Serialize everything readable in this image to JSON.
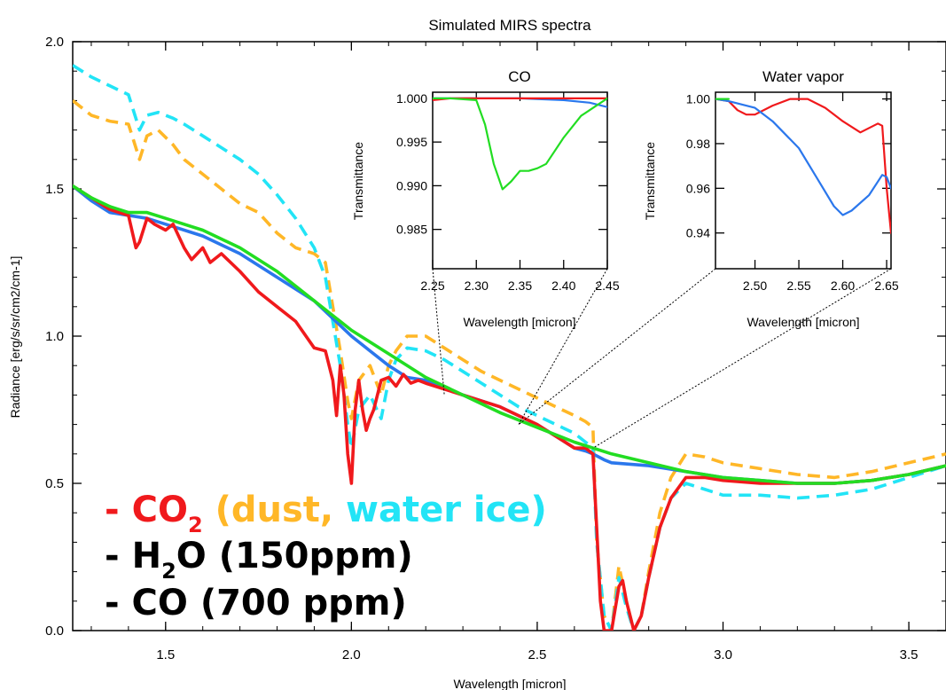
{
  "chart_data": [
    {
      "type": "line",
      "title": "Simulated MIRS spectra",
      "xlabel": "Wavelength [micron]",
      "ylabel": "Radiance [erg/s/sr/cm2/cm-1]",
      "xlim": [
        1.25,
        3.6
      ],
      "ylim": [
        0.0,
        2.0
      ],
      "xticks": [
        "1.5",
        "2.0",
        "2.5",
        "3.0",
        "3.5"
      ],
      "xtick_values": [
        1.5,
        2.0,
        2.5,
        3.0,
        3.5
      ],
      "yticks": [
        "0.0",
        "0.5",
        "1.0",
        "1.5",
        "2.0"
      ],
      "ytick_values": [
        0.0,
        0.5,
        1.0,
        1.5,
        2.0
      ],
      "series": [
        {
          "key": "dust",
          "color": "#ffb727",
          "dashed": true,
          "x": [
            1.25,
            1.3,
            1.35,
            1.4,
            1.43,
            1.45,
            1.48,
            1.52,
            1.55,
            1.6,
            1.65,
            1.7,
            1.75,
            1.8,
            1.85,
            1.9,
            1.93,
            1.95,
            1.97,
            1.99,
            2.0,
            2.02,
            2.05,
            2.08,
            2.1,
            2.12,
            2.15,
            2.2,
            2.25,
            2.3,
            2.35,
            2.4,
            2.45,
            2.5,
            2.55,
            2.6,
            2.63,
            2.65,
            2.66,
            2.68,
            2.7,
            2.72,
            2.74,
            2.76,
            2.78,
            2.8,
            2.83,
            2.86,
            2.9,
            2.95,
            3.0,
            3.1,
            3.2,
            3.3,
            3.4,
            3.5,
            3.6
          ],
          "y": [
            1.8,
            1.75,
            1.73,
            1.72,
            1.6,
            1.68,
            1.7,
            1.65,
            1.6,
            1.55,
            1.5,
            1.45,
            1.42,
            1.35,
            1.3,
            1.28,
            1.25,
            1.1,
            0.95,
            0.78,
            0.72,
            0.85,
            0.9,
            0.8,
            0.9,
            0.95,
            1.0,
            1.0,
            0.96,
            0.92,
            0.88,
            0.85,
            0.82,
            0.79,
            0.76,
            0.73,
            0.71,
            0.69,
            0.3,
            0.05,
            0.0,
            0.22,
            0.1,
            0.0,
            0.05,
            0.2,
            0.4,
            0.52,
            0.6,
            0.59,
            0.57,
            0.55,
            0.53,
            0.52,
            0.54,
            0.57,
            0.6
          ]
        },
        {
          "key": "water_ice",
          "color": "#22e4f6",
          "dashed": true,
          "x": [
            1.25,
            1.3,
            1.35,
            1.4,
            1.43,
            1.45,
            1.48,
            1.52,
            1.55,
            1.6,
            1.65,
            1.7,
            1.75,
            1.8,
            1.85,
            1.9,
            1.93,
            1.95,
            1.97,
            1.99,
            2.0,
            2.02,
            2.05,
            2.08,
            2.1,
            2.12,
            2.15,
            2.2,
            2.25,
            2.3,
            2.35,
            2.4,
            2.45,
            2.5,
            2.55,
            2.6,
            2.63,
            2.65,
            2.66,
            2.68,
            2.7,
            2.72,
            2.74,
            2.76,
            2.78,
            2.8,
            2.83,
            2.86,
            2.9,
            2.95,
            3.0,
            3.1,
            3.2,
            3.3,
            3.4,
            3.5,
            3.6
          ],
          "y": [
            1.92,
            1.88,
            1.85,
            1.82,
            1.7,
            1.75,
            1.76,
            1.74,
            1.72,
            1.68,
            1.64,
            1.6,
            1.55,
            1.48,
            1.4,
            1.3,
            1.2,
            1.05,
            0.9,
            0.7,
            0.62,
            0.75,
            0.8,
            0.72,
            0.85,
            0.92,
            0.96,
            0.95,
            0.92,
            0.88,
            0.84,
            0.8,
            0.76,
            0.73,
            0.7,
            0.67,
            0.64,
            0.62,
            0.3,
            0.05,
            0.0,
            0.18,
            0.08,
            0.0,
            0.05,
            0.18,
            0.35,
            0.45,
            0.5,
            0.48,
            0.46,
            0.46,
            0.45,
            0.46,
            0.48,
            0.52,
            0.56
          ]
        },
        {
          "key": "h2o",
          "color": "#2b77ec",
          "dashed": false,
          "x": [
            1.25,
            1.3,
            1.35,
            1.4,
            1.45,
            1.5,
            1.6,
            1.7,
            1.8,
            1.9,
            1.95,
            2.0,
            2.05,
            2.1,
            2.15,
            2.2,
            2.3,
            2.4,
            2.5,
            2.55,
            2.6,
            2.63,
            2.65,
            2.68,
            2.7,
            2.8,
            2.9,
            3.0,
            3.1,
            3.2,
            3.3,
            3.4,
            3.5,
            3.6
          ],
          "y": [
            1.51,
            1.46,
            1.42,
            1.41,
            1.4,
            1.38,
            1.34,
            1.28,
            1.2,
            1.12,
            1.06,
            1.0,
            0.95,
            0.9,
            0.86,
            0.85,
            0.8,
            0.76,
            0.7,
            0.66,
            0.62,
            0.61,
            0.6,
            0.58,
            0.57,
            0.56,
            0.54,
            0.52,
            0.51,
            0.5,
            0.5,
            0.51,
            0.53,
            0.56
          ]
        },
        {
          "key": "co2",
          "color": "#f0191c",
          "dashed": false,
          "x": [
            1.25,
            1.3,
            1.35,
            1.4,
            1.42,
            1.43,
            1.45,
            1.47,
            1.5,
            1.52,
            1.55,
            1.57,
            1.6,
            1.62,
            1.65,
            1.7,
            1.75,
            1.8,
            1.85,
            1.9,
            1.93,
            1.95,
            1.96,
            1.97,
            1.98,
            1.99,
            2.0,
            2.01,
            2.02,
            2.03,
            2.04,
            2.05,
            2.06,
            2.08,
            2.1,
            2.12,
            2.14,
            2.16,
            2.18,
            2.2,
            2.3,
            2.4,
            2.5,
            2.55,
            2.6,
            2.63,
            2.65,
            2.66,
            2.67,
            2.68,
            2.7,
            2.72,
            2.73,
            2.74,
            2.76,
            2.78,
            2.8,
            2.83,
            2.86,
            2.9,
            2.95,
            3.0,
            3.1,
            3.2,
            3.3,
            3.4,
            3.5,
            3.6
          ],
          "y": [
            1.51,
            1.47,
            1.43,
            1.41,
            1.3,
            1.32,
            1.4,
            1.38,
            1.36,
            1.38,
            1.3,
            1.26,
            1.3,
            1.25,
            1.28,
            1.22,
            1.15,
            1.1,
            1.05,
            0.96,
            0.95,
            0.85,
            0.73,
            0.9,
            0.8,
            0.6,
            0.5,
            0.75,
            0.85,
            0.75,
            0.68,
            0.72,
            0.75,
            0.85,
            0.86,
            0.83,
            0.87,
            0.84,
            0.85,
            0.84,
            0.8,
            0.76,
            0.7,
            0.66,
            0.62,
            0.62,
            0.6,
            0.35,
            0.1,
            0.0,
            0.0,
            0.15,
            0.17,
            0.1,
            0.0,
            0.05,
            0.18,
            0.35,
            0.45,
            0.52,
            0.52,
            0.51,
            0.5,
            0.5,
            0.5,
            0.51,
            0.53,
            0.56
          ]
        },
        {
          "key": "co",
          "color": "#22dd22",
          "dashed": false,
          "x": [
            1.25,
            1.3,
            1.35,
            1.4,
            1.45,
            1.5,
            1.6,
            1.7,
            1.8,
            1.9,
            2.0,
            2.1,
            2.2,
            2.3,
            2.4,
            2.5,
            2.6,
            2.7,
            2.8,
            2.9,
            3.0,
            3.1,
            3.2,
            3.3,
            3.4,
            3.5,
            3.6
          ],
          "y": [
            1.51,
            1.47,
            1.44,
            1.42,
            1.42,
            1.4,
            1.36,
            1.3,
            1.22,
            1.12,
            1.02,
            0.94,
            0.86,
            0.8,
            0.74,
            0.69,
            0.64,
            0.6,
            0.57,
            0.54,
            0.52,
            0.51,
            0.5,
            0.5,
            0.51,
            0.53,
            0.56
          ]
        }
      ]
    },
    {
      "type": "line",
      "title": "CO",
      "xlabel": "Wavelength [micron]",
      "ylabel": "Transmittance",
      "xlim": [
        2.25,
        2.45
      ],
      "ylim": [
        0.9805,
        1.0007
      ],
      "xticks": [
        "2.25",
        "2.30",
        "2.35",
        "2.40",
        "2.45"
      ],
      "xtick_values": [
        2.25,
        2.3,
        2.35,
        2.4,
        2.45
      ],
      "yticks": [
        "1.000",
        "0.995",
        "0.990",
        "0.985"
      ],
      "ytick_values": [
        1.0,
        0.995,
        0.99,
        0.985
      ],
      "series": [
        {
          "key": "h2o",
          "color": "#2b77ec",
          "x": [
            2.25,
            2.3,
            2.35,
            2.4,
            2.43,
            2.45
          ],
          "y": [
            1.0,
            1.0,
            1.0,
            0.9998,
            0.9995,
            0.999
          ]
        },
        {
          "key": "co2",
          "color": "#f0191c",
          "x": [
            2.25,
            2.27,
            2.3,
            2.35,
            2.4,
            2.45
          ],
          "y": [
            0.9998,
            1.0,
            1.0,
            1.0,
            1.0,
            1.0
          ]
        },
        {
          "key": "co",
          "color": "#22dd22",
          "x": [
            2.25,
            2.27,
            2.3,
            2.31,
            2.32,
            2.33,
            2.34,
            2.35,
            2.36,
            2.37,
            2.38,
            2.4,
            2.42,
            2.45
          ],
          "y": [
            1.0,
            1.0,
            0.9998,
            0.997,
            0.9925,
            0.9896,
            0.9905,
            0.9917,
            0.9917,
            0.992,
            0.9925,
            0.9955,
            0.998,
            1.0
          ]
        }
      ]
    },
    {
      "type": "line",
      "title": "Water vapor",
      "xlabel": "Wavelength [micron]",
      "ylabel": "Transmittance",
      "xlim": [
        2.455,
        2.655
      ],
      "ylim": [
        0.924,
        1.003
      ],
      "xticks": [
        "2.50",
        "2.55",
        "2.60",
        "2.65"
      ],
      "xtick_values": [
        2.5,
        2.55,
        2.6,
        2.65
      ],
      "yticks": [
        "1.00",
        "0.98",
        "0.96",
        "0.94"
      ],
      "ytick_values": [
        1.0,
        0.98,
        0.96,
        0.94
      ],
      "series": [
        {
          "key": "co2",
          "color": "#f0191c",
          "x": [
            2.455,
            2.47,
            2.48,
            2.49,
            2.5,
            2.52,
            2.54,
            2.56,
            2.58,
            2.6,
            2.62,
            2.63,
            2.64,
            2.645,
            2.65,
            2.655
          ],
          "y": [
            1.0,
            0.999,
            0.995,
            0.993,
            0.993,
            0.997,
            1.0,
            1.0,
            0.996,
            0.99,
            0.985,
            0.987,
            0.989,
            0.988,
            0.96,
            0.94
          ]
        },
        {
          "key": "h2o",
          "color": "#2b77ec",
          "x": [
            2.455,
            2.47,
            2.48,
            2.5,
            2.52,
            2.55,
            2.57,
            2.59,
            2.6,
            2.61,
            2.63,
            2.645,
            2.65,
            2.655
          ],
          "y": [
            1.0,
            0.999,
            0.998,
            0.996,
            0.99,
            0.978,
            0.965,
            0.952,
            0.948,
            0.95,
            0.957,
            0.966,
            0.965,
            0.96
          ]
        },
        {
          "key": "co",
          "color": "#22dd22",
          "x": [
            2.455,
            2.47
          ],
          "y": [
            1.0,
            1.0
          ]
        }
      ]
    }
  ],
  "legend": {
    "co2_dash": "-",
    "co2_main": "CO",
    "co2_sub": "2",
    "dust_open": " (dust,",
    "water_ice_close": " water ice)",
    "h2o_dash": "-",
    "h2o_main": "H",
    "h2o_sub": "2",
    "h2o_tail": "O (150ppm)",
    "co_line": "- CO (700 ppm)"
  },
  "colors": {
    "co2": "#f0191c",
    "h2o": "#2b77ec",
    "co": "#22dd22",
    "dust": "#ffb727",
    "water_ice": "#22e4f6",
    "zoom_lines": "#000000"
  }
}
